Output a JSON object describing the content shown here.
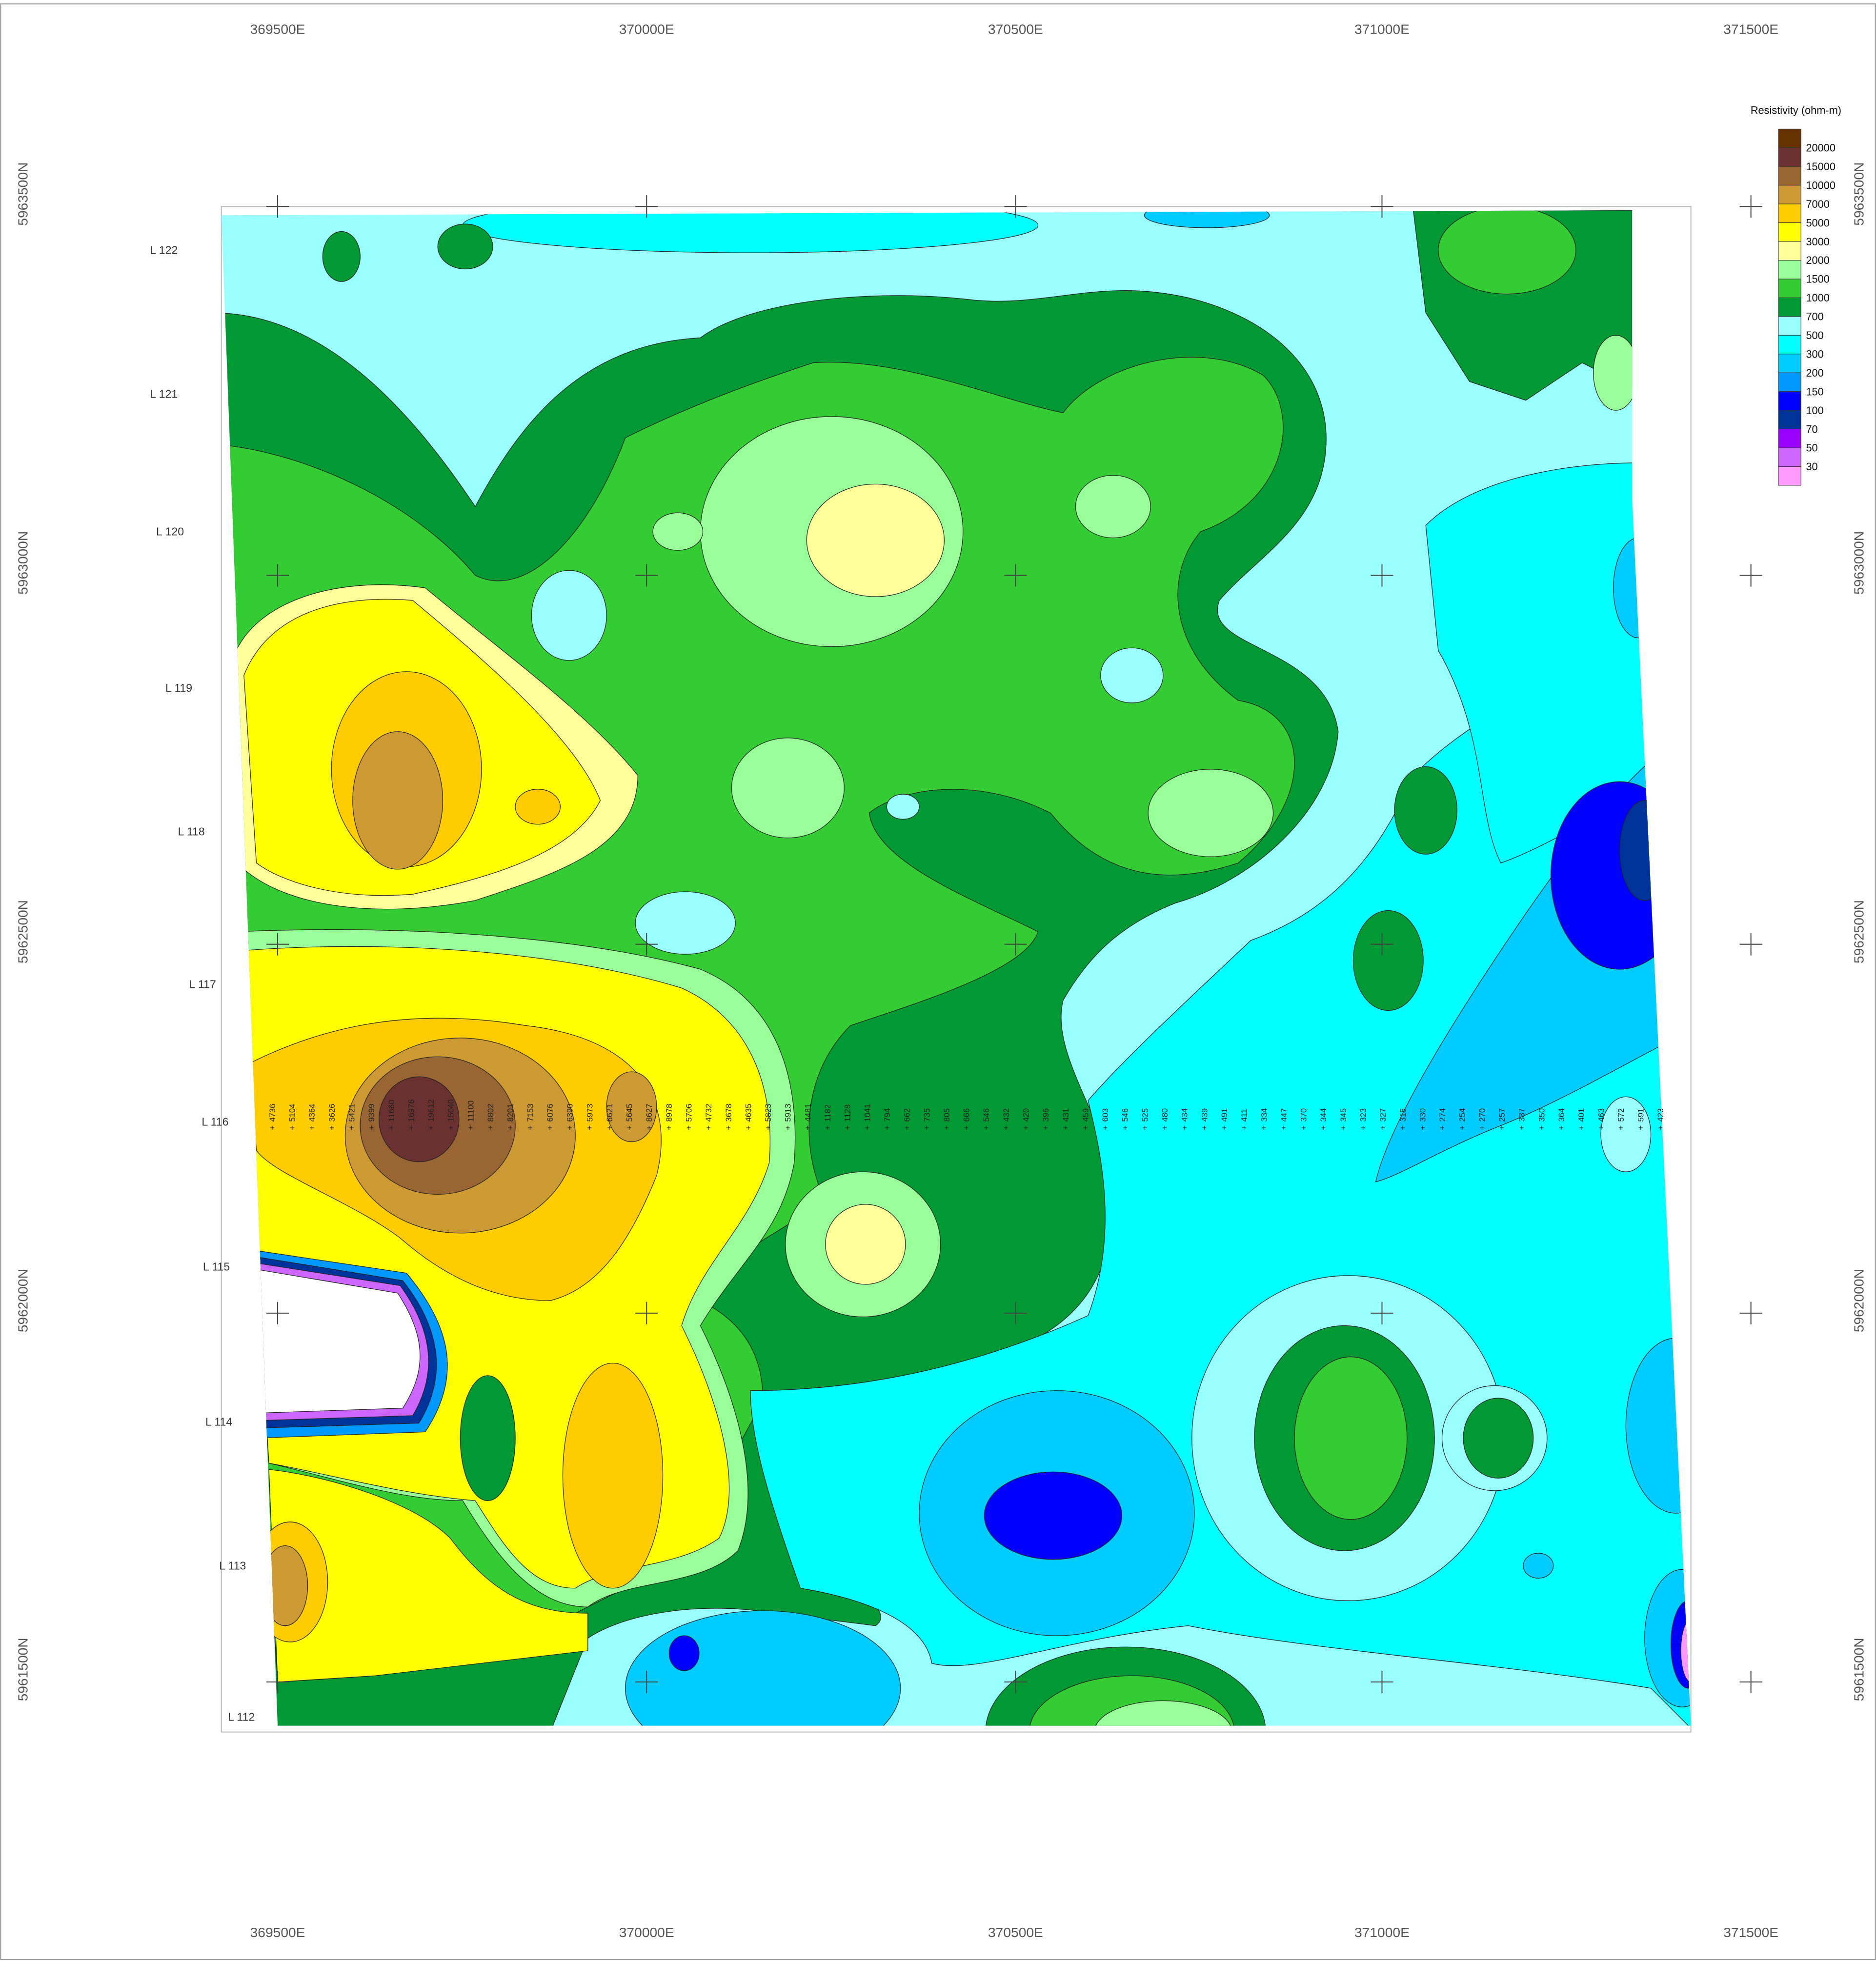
{
  "map": {
    "eastings": [
      "369500E",
      "370000E",
      "370500E",
      "371000E",
      "371500E"
    ],
    "northings": [
      "5963500N",
      "5963000N",
      "5962500N",
      "5962000N",
      "5961500N"
    ],
    "lines": [
      "L 122",
      "L 121",
      "L 120",
      "L 119",
      "L 118",
      "L 117",
      "L 116",
      "L 115",
      "L 114",
      "L 113",
      "L 112"
    ],
    "legend": {
      "title": "Resistivity (ohm-m)",
      "labels": [
        "20000",
        "15000",
        "10000",
        "7000",
        "5000",
        "3000",
        "2000",
        "1500",
        "1000",
        "700",
        "500",
        "300",
        "200",
        "150",
        "100",
        "70",
        "50",
        "30"
      ],
      "colors": [
        "#663300",
        "#6b3030",
        "#996633",
        "#cc9933",
        "#ffcc00",
        "#ffff00",
        "#ffff99",
        "#99ff99",
        "#33cc33",
        "#009933",
        "#99ffff",
        "#00ffff",
        "#00ccff",
        "#0099ff",
        "#0000ff",
        "#003399",
        "#9900ff",
        "#cc66ff",
        "#ff99ff"
      ]
    },
    "stations": {
      "line": "L 116",
      "values": [
        4736,
        5104,
        4364,
        3626,
        5421,
        9399,
        11660,
        16976,
        19612,
        15040,
        11100,
        8802,
        8201,
        7153,
        6076,
        6390,
        5973,
        6621,
        5645,
        8627,
        8978,
        5706,
        4732,
        3678,
        4635,
        5823,
        5913,
        4481,
        1182,
        1128,
        1041,
        794,
        662,
        735,
        805,
        666,
        546,
        432,
        420,
        396,
        431,
        459,
        603,
        546,
        525,
        480,
        434,
        439,
        491,
        411,
        334,
        447,
        370,
        344,
        345,
        323,
        327,
        315,
        330,
        274,
        254,
        270,
        257,
        337,
        350,
        364,
        401,
        463,
        572,
        591,
        423
      ]
    }
  }
}
